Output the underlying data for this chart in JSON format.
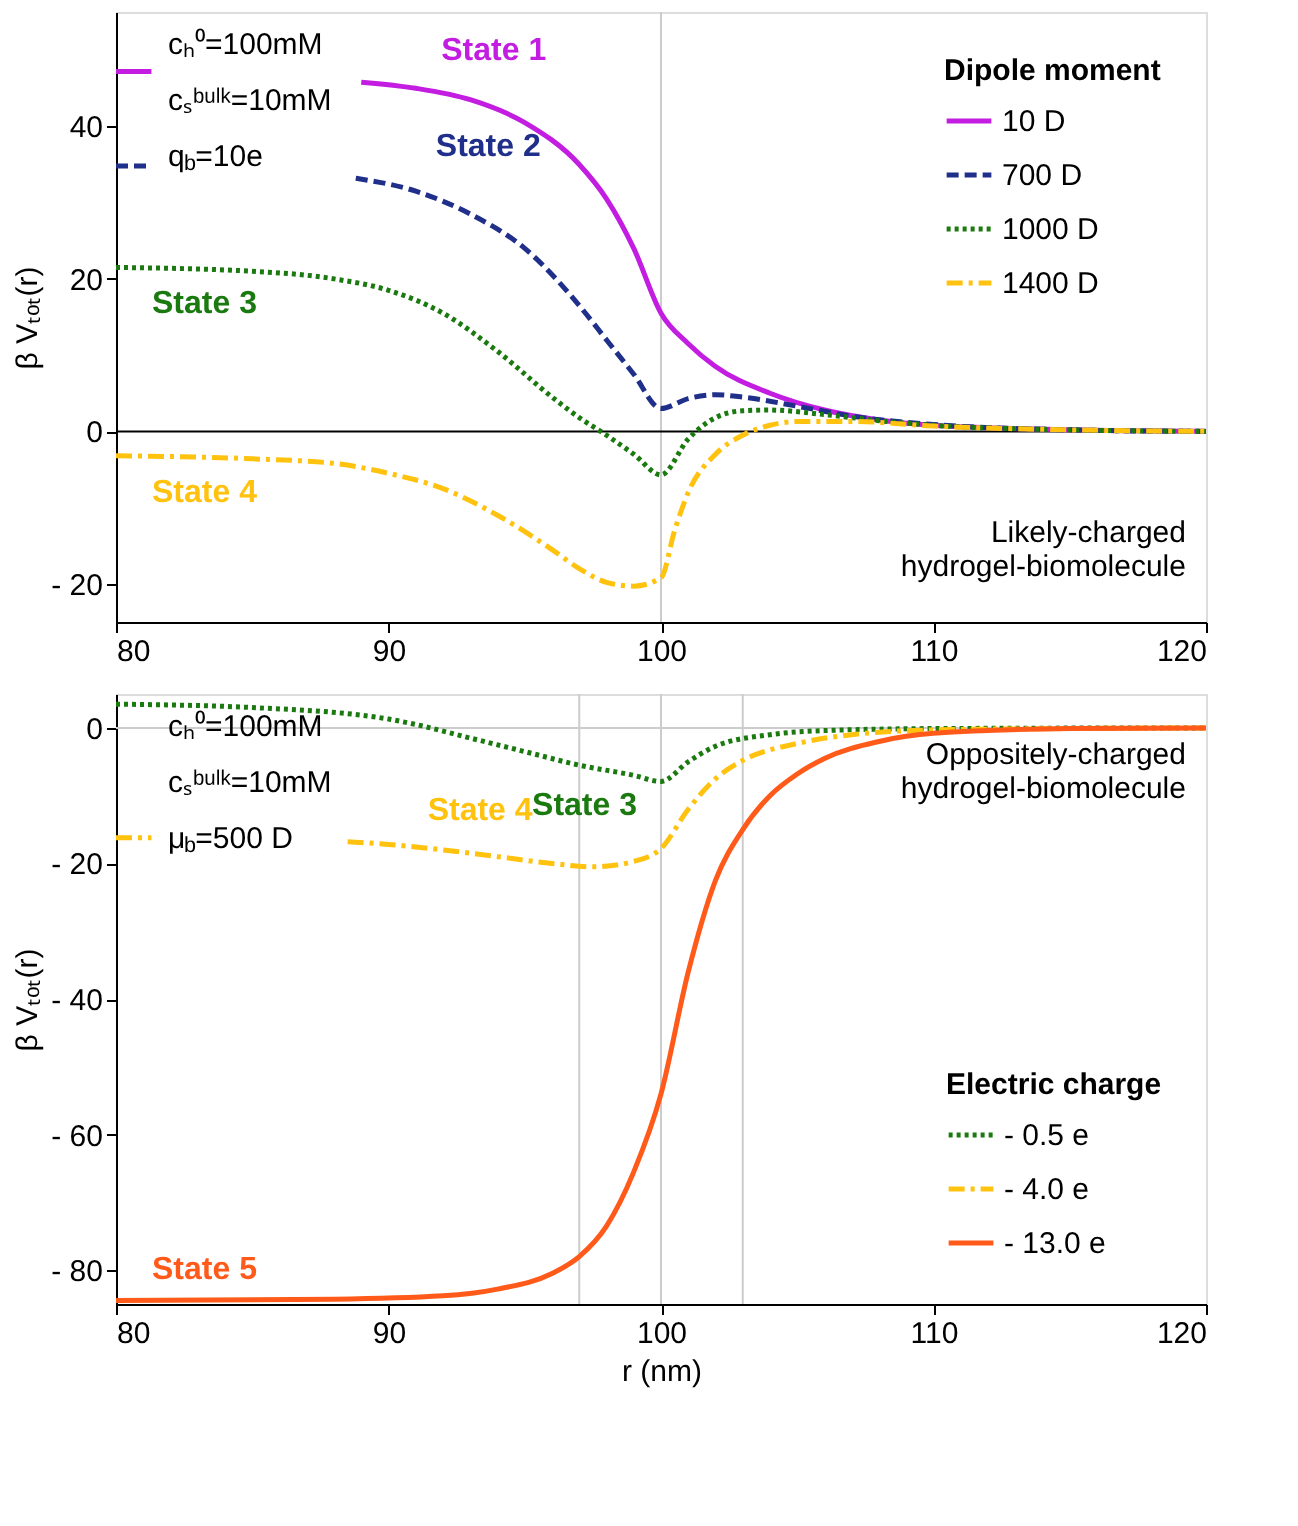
{
  "chart_data": [
    {
      "type": "line",
      "ylabel": "β Vₜₒₜ(r)",
      "legend_title": "Dipole moment",
      "legend": "top right",
      "grid": false,
      "xlim": [
        80,
        120
      ],
      "xticks": [
        80,
        90,
        100,
        110,
        120
      ],
      "ylim": [
        -25,
        55
      ],
      "yticks": [
        {
          "value": -20,
          "label": "- 20"
        },
        0,
        20,
        40
      ],
      "series": [
        {
          "name": "10 D",
          "color": "#c21de0",
          "line_style": "solid",
          "x": [
            80,
            81.3,
            82,
            89,
            91,
            93,
            95,
            97,
            98,
            99,
            100,
            101,
            102,
            104,
            106,
            108,
            110,
            115,
            120
          ],
          "values": [
            47.2,
            47.2,
            null,
            45.8,
            45,
            43.5,
            40.5,
            35,
            30.5,
            24,
            15.5,
            11.5,
            8.5,
            5,
            2.8,
            1.5,
            0.8,
            0.2,
            0
          ]
        },
        {
          "name": "700 D",
          "color": "#1f2f8a",
          "line_style": "dashed",
          "x": [
            80,
            81.3,
            82,
            88.8,
            91,
            93,
            95,
            97,
            98,
            99,
            100,
            101,
            102,
            103,
            105,
            107,
            110,
            115,
            120
          ],
          "values": [
            34.8,
            34.8,
            null,
            33.2,
            31.5,
            28.5,
            24,
            16.5,
            12,
            7.5,
            3,
            4.3,
            4.8,
            4.5,
            3.3,
            2,
            0.9,
            0.2,
            0
          ]
        },
        {
          "name": "1000 D",
          "color": "#1a7a10",
          "line_style": "dotted",
          "x": [
            80,
            85,
            88,
            90,
            92,
            94,
            96,
            97,
            98,
            99,
            100,
            101,
            102,
            103,
            104,
            106,
            108,
            110,
            115,
            120
          ],
          "values": [
            21.5,
            21,
            20,
            18.5,
            15.5,
            10.5,
            4.5,
            1.8,
            -0.5,
            -3,
            -5.7,
            -1,
            1.8,
            2.7,
            2.8,
            2.2,
            1.4,
            0.8,
            0.2,
            0
          ]
        },
        {
          "name": "1400 D",
          "color": "#ffc20e",
          "line_style": "dashdot",
          "x": [
            80,
            85,
            88,
            90,
            92,
            94,
            96,
            97,
            98,
            99,
            100,
            100.5,
            101,
            102,
            103,
            104,
            105,
            107,
            110,
            115,
            120
          ],
          "values": [
            -3.2,
            -3.6,
            -4.2,
            -5.5,
            -7.5,
            -11,
            -15.5,
            -18,
            -19.8,
            -20.3,
            -19.2,
            -13,
            -8,
            -3,
            -0.5,
            0.8,
            1.3,
            1.3,
            0.7,
            0.2,
            0
          ]
        }
      ],
      "ref_lines": [
        {
          "axis": "x",
          "value": 100,
          "color": "#cccccc"
        },
        {
          "axis": "y",
          "value": 0,
          "color": "#000000"
        }
      ],
      "annotations": [
        "State 1",
        "State 2",
        "State 3",
        "State 4",
        "cₕ⁰=100mM",
        "cₛᵇᵘˡᵏ=10mM",
        "q$_{b}$=10e",
        "Likely-charged\nhydrogel-biomolecule"
      ]
    },
    {
      "type": "line",
      "xlabel": "r (nm)",
      "ylabel": "β Vₜₒₜ(r)",
      "legend_title": "Electric charge",
      "legend": "bottom right",
      "grid": false,
      "xlim": [
        80,
        120
      ],
      "xticks": [
        80,
        90,
        100,
        110,
        120
      ],
      "ylim": [
        -85,
        5
      ],
      "yticks": [
        {
          "value": -80,
          "label": "- 80"
        },
        {
          "value": -60,
          "label": "- 60"
        },
        {
          "value": -40,
          "label": "- 40"
        },
        {
          "value": -20,
          "label": "- 20"
        },
        0
      ],
      "series": [
        {
          "name": "- 0.5 e",
          "color": "#1a7a10",
          "line_style": "dotted",
          "x": [
            80,
            85,
            90,
            91,
            93,
            95,
            97,
            99,
            100,
            101,
            102,
            104,
            106,
            110,
            120
          ],
          "values": [
            3.5,
            3,
            1.3,
            0.5,
            -1.5,
            -3.5,
            -5.5,
            -7,
            -7.9,
            -5,
            -2.7,
            -1,
            -0.4,
            -0.1,
            0
          ]
        },
        {
          "name": "- 4.0 e",
          "color": "#ffc20e",
          "line_style": "dashdot",
          "x": [
            80,
            81.3,
            82,
            88.5,
            90,
            92,
            94,
            96,
            97.5,
            99,
            100,
            101,
            102,
            103,
            105,
            107,
            110,
            115,
            120
          ],
          "values": [
            -16.2,
            -16.2,
            null,
            -16.8,
            -17.2,
            -18,
            -19,
            -20,
            -20.5,
            -19.7,
            -17.8,
            -12,
            -7.5,
            -4.8,
            -2.3,
            -1,
            -0.3,
            -0.1,
            0
          ]
        },
        {
          "name": "- 13.0 e",
          "color": "#ff5a1a",
          "line_style": "solid",
          "x": [
            80,
            88,
            92,
            94,
            96,
            97,
            98,
            99,
            100,
            101,
            102,
            103,
            104,
            105,
            106,
            108,
            110,
            115,
            120
          ],
          "values": [
            -84.5,
            -84.3,
            -83.8,
            -82.8,
            -80.5,
            -78,
            -73.5,
            -65.5,
            -54,
            -36,
            -22.5,
            -15,
            -10,
            -6.8,
            -4.5,
            -2,
            -0.8,
            -0.1,
            0
          ]
        }
      ],
      "ref_lines": [
        {
          "axis": "x",
          "value": 97,
          "color": "#cccccc"
        },
        {
          "axis": "x",
          "value": 100,
          "color": "#cccccc"
        },
        {
          "axis": "x",
          "value": 103,
          "color": "#cccccc"
        },
        {
          "axis": "y",
          "value": 0,
          "color": "#cccccc"
        }
      ],
      "annotations": [
        "State 3",
        "State 4",
        "State 5",
        "cₕ⁰=100mM",
        "cₛᵇᵘˡᵏ=10mM",
        "μ$_{b}$=500 D",
        "Oppositely-charged\nhydrogel-biomolecule"
      ]
    }
  ]
}
